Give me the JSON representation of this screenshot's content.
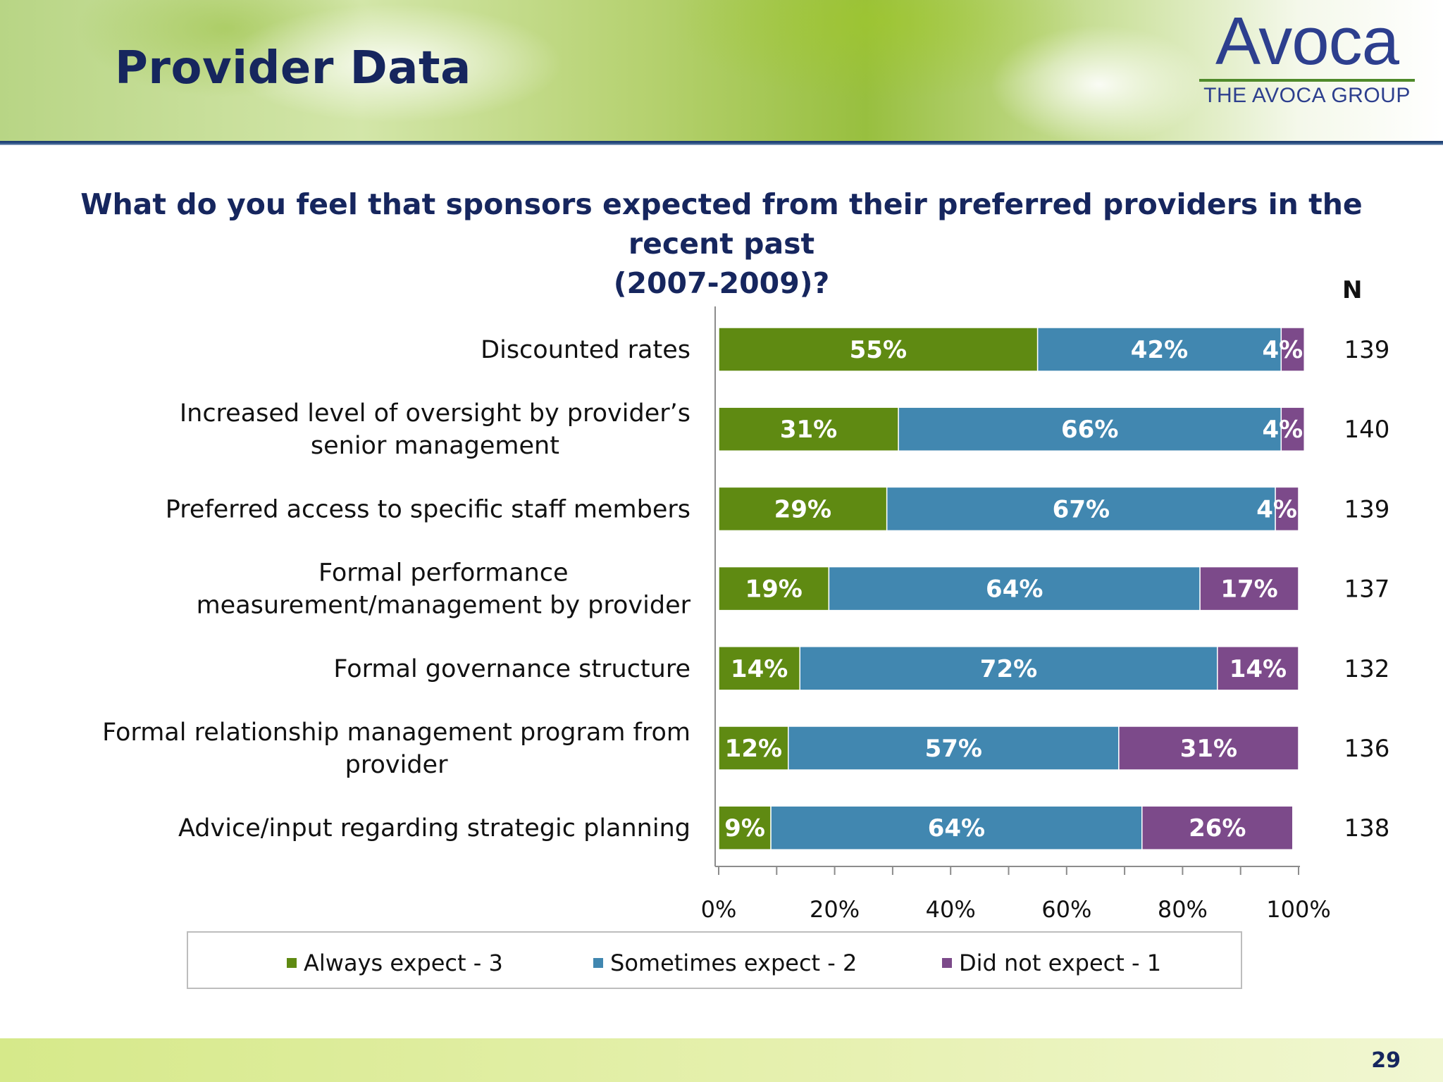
{
  "slide": {
    "title": "Provider Data",
    "page_number": "29",
    "logo": {
      "name": "Avoca",
      "subtitle": "THE AVOCA GROUP"
    },
    "question_line1": "What do you feel that sponsors expected from their preferred providers in the recent past",
    "question_line2": "(2007-2009)?",
    "n_header": "N"
  },
  "colors": {
    "always": "#5f8a12",
    "sometimes": "#4187b0",
    "not": "#7c4a8a",
    "title": "#16265e"
  },
  "chart_data": {
    "type": "bar",
    "orientation": "horizontal",
    "stacked": true,
    "categories": [
      [
        "Discounted rates"
      ],
      [
        "Increased level of oversight by provider’s",
        "senior management"
      ],
      [
        "Preferred access to specific staff members"
      ],
      [
        "Formal performance",
        "measurement/management by provider"
      ],
      [
        "Formal governance structure"
      ],
      [
        "Formal relationship management program from",
        "provider"
      ],
      [
        "Advice/input regarding strategic planning"
      ]
    ],
    "series": [
      {
        "name": "Always expect - 3",
        "key": "always",
        "values": [
          55,
          31,
          29,
          19,
          14,
          12,
          9
        ]
      },
      {
        "name": "Sometimes expect - 2",
        "key": "sometimes",
        "values": [
          42,
          66,
          67,
          64,
          72,
          57,
          64
        ]
      },
      {
        "name": "Did not expect - 1",
        "key": "not",
        "values": [
          4,
          4,
          4,
          17,
          14,
          31,
          26
        ]
      }
    ],
    "n_values": [
      "139",
      "140",
      "139",
      "137",
      "132",
      "136",
      "138"
    ],
    "x_ticks": [
      "0%",
      "20%",
      "40%",
      "60%",
      "80%",
      "100%"
    ],
    "xlim": [
      0,
      100
    ],
    "grid": false,
    "legend_position": "bottom"
  }
}
